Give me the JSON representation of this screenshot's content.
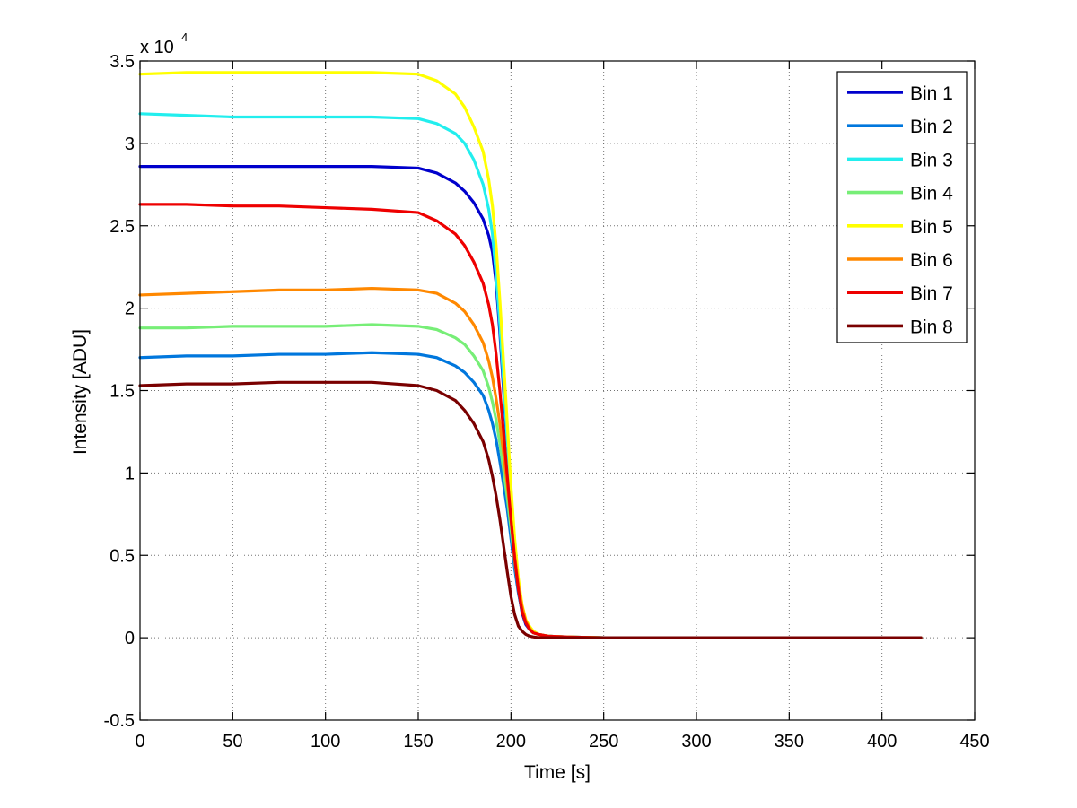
{
  "chart_data": {
    "type": "line",
    "xlabel": "Time [s]",
    "ylabel": "Intensity [ADU]",
    "xlim": [
      0,
      450
    ],
    "ylim": [
      -0.5,
      3.5
    ],
    "y_multiplier_label": "x 10",
    "y_multiplier_exponent": "4",
    "x_ticks": [
      0,
      50,
      100,
      150,
      200,
      250,
      300,
      350,
      400,
      450
    ],
    "x_tick_labels": [
      "0",
      "50",
      "100",
      "150",
      "200",
      "250",
      "300",
      "350",
      "400",
      "450"
    ],
    "y_ticks": [
      -0.5,
      0,
      0.5,
      1,
      1.5,
      2,
      2.5,
      3,
      3.5
    ],
    "y_tick_labels": [
      "-0.5",
      "0",
      "0.5",
      "1",
      "1.5",
      "2",
      "2.5",
      "3",
      "3.5"
    ],
    "grid": true,
    "legend_position": "top-right",
    "series": [
      {
        "name": "Bin 1",
        "color": "#0000cc",
        "x": [
          0,
          25,
          50,
          75,
          100,
          125,
          150,
          160,
          170,
          175,
          180,
          185,
          188,
          190,
          192,
          194,
          196,
          198,
          200,
          202,
          204,
          206,
          208,
          210,
          212,
          215,
          220,
          230,
          250,
          300,
          350,
          400,
          421
        ],
        "y": [
          2.86,
          2.86,
          2.86,
          2.86,
          2.86,
          2.86,
          2.85,
          2.82,
          2.76,
          2.71,
          2.64,
          2.54,
          2.44,
          2.34,
          2.15,
          1.85,
          1.5,
          1.15,
          0.8,
          0.5,
          0.28,
          0.15,
          0.08,
          0.05,
          0.03,
          0.02,
          0.01,
          0.005,
          0,
          0,
          0,
          0,
          0
        ]
      },
      {
        "name": "Bin 2",
        "color": "#0077dd",
        "x": [
          0,
          25,
          50,
          75,
          100,
          125,
          150,
          160,
          170,
          175,
          180,
          185,
          188,
          190,
          192,
          194,
          196,
          198,
          200,
          202,
          204,
          206,
          208,
          210,
          212,
          215,
          220,
          230,
          250,
          300,
          350,
          400,
          421
        ],
        "y": [
          1.7,
          1.71,
          1.71,
          1.72,
          1.72,
          1.73,
          1.72,
          1.7,
          1.65,
          1.61,
          1.55,
          1.47,
          1.38,
          1.3,
          1.2,
          1.07,
          0.93,
          0.78,
          0.6,
          0.42,
          0.27,
          0.16,
          0.09,
          0.05,
          0.03,
          0.02,
          0.01,
          0.005,
          0,
          0,
          0,
          0,
          0
        ]
      },
      {
        "name": "Bin 3",
        "color": "#22eeee",
        "x": [
          0,
          25,
          50,
          75,
          100,
          125,
          150,
          160,
          170,
          175,
          180,
          185,
          188,
          190,
          192,
          194,
          196,
          198,
          200,
          202,
          204,
          206,
          208,
          210,
          212,
          215,
          220,
          230,
          250,
          300,
          350,
          400,
          421
        ],
        "y": [
          3.18,
          3.17,
          3.16,
          3.16,
          3.16,
          3.16,
          3.15,
          3.12,
          3.06,
          3.0,
          2.9,
          2.75,
          2.6,
          2.45,
          2.2,
          1.9,
          1.55,
          1.2,
          0.85,
          0.55,
          0.32,
          0.18,
          0.1,
          0.06,
          0.04,
          0.02,
          0.01,
          0.005,
          0,
          0,
          0,
          0,
          0
        ]
      },
      {
        "name": "Bin 4",
        "color": "#77ee77",
        "x": [
          0,
          25,
          50,
          75,
          100,
          125,
          150,
          160,
          170,
          175,
          180,
          185,
          188,
          190,
          192,
          194,
          196,
          198,
          200,
          202,
          204,
          206,
          208,
          210,
          212,
          215,
          220,
          230,
          250,
          300,
          350,
          400,
          421
        ],
        "y": [
          1.88,
          1.88,
          1.89,
          1.89,
          1.89,
          1.9,
          1.89,
          1.87,
          1.82,
          1.78,
          1.71,
          1.62,
          1.52,
          1.43,
          1.32,
          1.18,
          1.02,
          0.85,
          0.66,
          0.46,
          0.3,
          0.18,
          0.1,
          0.06,
          0.03,
          0.02,
          0.01,
          0.005,
          0,
          0,
          0,
          0,
          0
        ]
      },
      {
        "name": "Bin 5",
        "color": "#ffff00",
        "x": [
          0,
          25,
          50,
          75,
          100,
          125,
          150,
          160,
          170,
          175,
          180,
          185,
          188,
          190,
          192,
          194,
          196,
          198,
          200,
          202,
          204,
          206,
          208,
          210,
          212,
          215,
          220,
          230,
          250,
          300,
          350,
          400,
          421
        ],
        "y": [
          3.42,
          3.43,
          3.43,
          3.43,
          3.43,
          3.43,
          3.42,
          3.38,
          3.3,
          3.22,
          3.1,
          2.95,
          2.78,
          2.62,
          2.38,
          2.05,
          1.68,
          1.3,
          0.92,
          0.6,
          0.36,
          0.2,
          0.11,
          0.07,
          0.04,
          0.02,
          0.01,
          0.005,
          0,
          0,
          0,
          0,
          0
        ]
      },
      {
        "name": "Bin 6",
        "color": "#ff8800",
        "x": [
          0,
          25,
          50,
          75,
          100,
          125,
          150,
          160,
          170,
          175,
          180,
          185,
          188,
          190,
          192,
          194,
          196,
          198,
          200,
          202,
          204,
          206,
          208,
          210,
          212,
          215,
          220,
          230,
          250,
          300,
          350,
          400,
          421
        ],
        "y": [
          2.08,
          2.09,
          2.1,
          2.11,
          2.11,
          2.12,
          2.11,
          2.09,
          2.03,
          1.98,
          1.9,
          1.79,
          1.68,
          1.58,
          1.45,
          1.3,
          1.12,
          0.93,
          0.72,
          0.5,
          0.32,
          0.19,
          0.1,
          0.06,
          0.03,
          0.02,
          0.01,
          0.005,
          0,
          0,
          0,
          0,
          0
        ]
      },
      {
        "name": "Bin 7",
        "color": "#ee0000",
        "x": [
          0,
          25,
          50,
          75,
          100,
          125,
          150,
          160,
          170,
          175,
          180,
          185,
          188,
          190,
          192,
          194,
          196,
          198,
          200,
          202,
          204,
          206,
          208,
          210,
          212,
          215,
          220,
          230,
          250,
          300,
          350,
          400,
          421
        ],
        "y": [
          2.63,
          2.63,
          2.62,
          2.62,
          2.61,
          2.6,
          2.58,
          2.53,
          2.45,
          2.38,
          2.28,
          2.15,
          2.02,
          1.9,
          1.72,
          1.5,
          1.25,
          0.98,
          0.72,
          0.48,
          0.29,
          0.16,
          0.09,
          0.05,
          0.03,
          0.02,
          0.01,
          0.005,
          0,
          0,
          0,
          0,
          0
        ]
      },
      {
        "name": "Bin 8",
        "color": "#7a0000",
        "x": [
          0,
          25,
          50,
          75,
          100,
          125,
          150,
          160,
          170,
          175,
          180,
          185,
          188,
          190,
          192,
          194,
          196,
          198,
          200,
          202,
          204,
          206,
          208,
          210,
          212,
          215,
          220,
          230,
          250,
          300,
          350,
          400,
          421
        ],
        "y": [
          1.53,
          1.54,
          1.54,
          1.55,
          1.55,
          1.55,
          1.53,
          1.5,
          1.44,
          1.38,
          1.3,
          1.19,
          1.08,
          0.98,
          0.86,
          0.72,
          0.56,
          0.4,
          0.25,
          0.14,
          0.07,
          0.04,
          0.02,
          0.01,
          0.005,
          0,
          0,
          0,
          0,
          0,
          0,
          0,
          0
        ]
      }
    ]
  }
}
